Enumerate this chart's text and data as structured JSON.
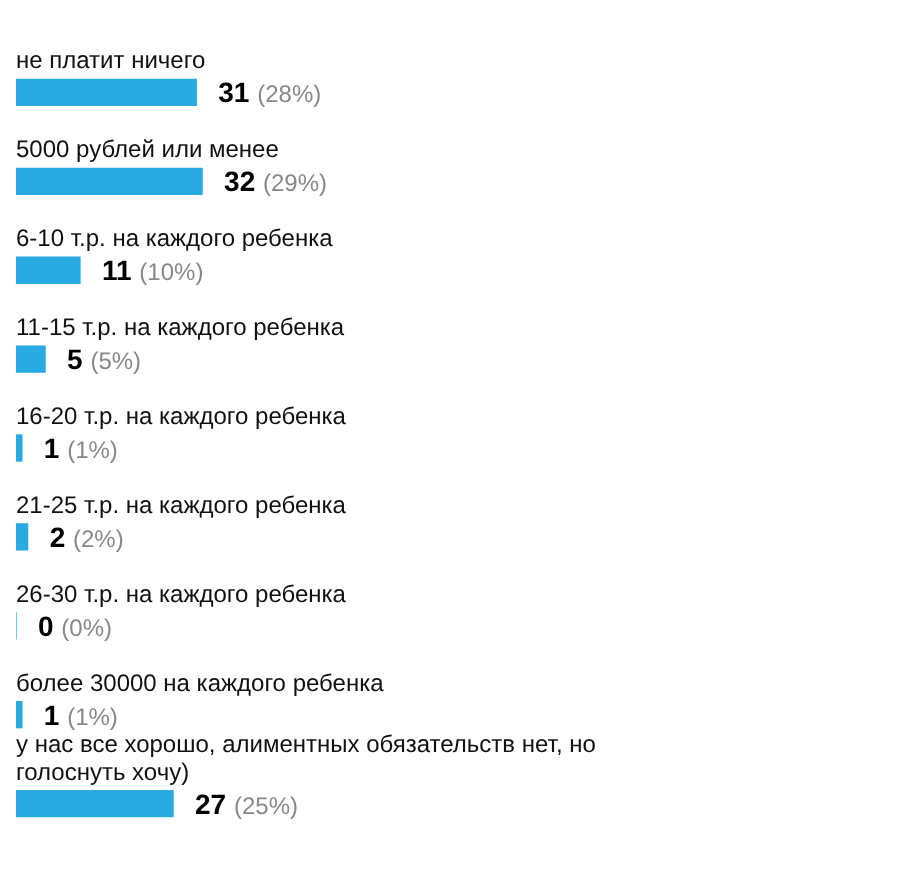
{
  "chart_data": {
    "type": "bar",
    "orientation": "horizontal",
    "categories": [
      "не платит ничего",
      "5000 рублей или менее",
      "6-10 т.р. на каждого ребенка",
      "11-15 т.р. на каждого ребенка",
      "16-20 т.р. на каждого ребенка",
      "21-25 т.р. на каждого ребенка",
      "26-30 т.р. на каждого ребенка",
      "более 30000 на каждого ребенка",
      "у нас все хорошо, алиментных обязательств нет, но голоснуть хочу)"
    ],
    "values": [
      31,
      32,
      11,
      5,
      1,
      2,
      0,
      1,
      27
    ],
    "value_labels": [
      "31 (28%)",
      "32 (29%)",
      "11 (10%)",
      "5 (5%)",
      "1 (1%)",
      "2 (2%)",
      "0 (0%)",
      "1 (1%)",
      "27 (25%)"
    ],
    "color": "#29aae2",
    "legend": false
  }
}
